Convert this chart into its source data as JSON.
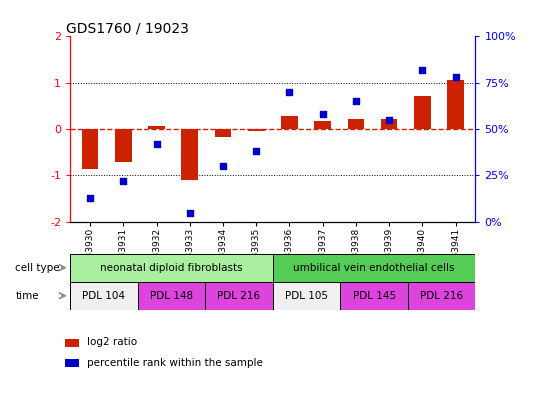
{
  "title": "GDS1760 / 19023",
  "samples": [
    "GSM33930",
    "GSM33931",
    "GSM33932",
    "GSM33933",
    "GSM33934",
    "GSM33935",
    "GSM33936",
    "GSM33937",
    "GSM33938",
    "GSM33939",
    "GSM33940",
    "GSM33941"
  ],
  "log2_ratio": [
    -0.85,
    -0.72,
    0.06,
    -1.1,
    -0.18,
    -0.05,
    0.28,
    0.17,
    0.22,
    0.22,
    0.72,
    1.05
  ],
  "percentile_rank": [
    13,
    22,
    42,
    5,
    30,
    38,
    70,
    58,
    65,
    55,
    82,
    78
  ],
  "ylim_left": [
    -2,
    2
  ],
  "ylim_right": [
    0,
    100
  ],
  "yticks_left": [
    -2,
    -1,
    0,
    1,
    2
  ],
  "yticks_right": [
    0,
    25,
    50,
    75,
    100
  ],
  "ytick_labels_right": [
    "0%",
    "25%",
    "50%",
    "75%",
    "100%"
  ],
  "bar_color": "#cc2200",
  "dot_color": "#0000cc",
  "hline_color": "#cc2200",
  "dotted_line_color": "#000000",
  "cell_type_groups": [
    {
      "label": "neonatal diploid fibroblasts",
      "start": 0,
      "end": 6,
      "color": "#aaeea0"
    },
    {
      "label": "umbilical vein endothelial cells",
      "start": 6,
      "end": 12,
      "color": "#55cc55"
    }
  ],
  "time_groups": [
    {
      "label": "PDL 104",
      "start": 0,
      "end": 2,
      "color": "#f0f0f0"
    },
    {
      "label": "PDL 148",
      "start": 2,
      "end": 4,
      "color": "#dd44dd"
    },
    {
      "label": "PDL 216",
      "start": 4,
      "end": 6,
      "color": "#dd44dd"
    },
    {
      "label": "PDL 105",
      "start": 6,
      "end": 8,
      "color": "#f0f0f0"
    },
    {
      "label": "PDL 145",
      "start": 8,
      "end": 10,
      "color": "#dd44dd"
    },
    {
      "label": "PDL 216",
      "start": 10,
      "end": 12,
      "color": "#dd44dd"
    }
  ],
  "cell_type_row_label": "cell type",
  "time_row_label": "time",
  "legend_items": [
    {
      "color": "#cc2200",
      "label": "log2 ratio"
    },
    {
      "color": "#0000cc",
      "label": "percentile rank within the sample"
    }
  ],
  "background_color": "#ffffff",
  "bar_width": 0.5
}
